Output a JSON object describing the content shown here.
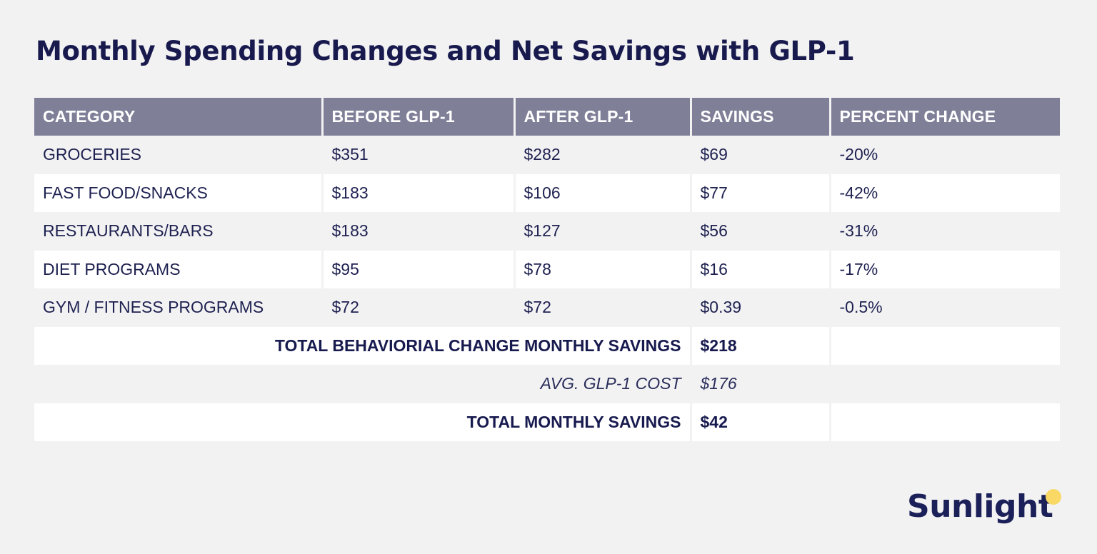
{
  "title": "Monthly Spending Changes and Net Savings with GLP-1",
  "colors": {
    "header_bg": "#7f8098",
    "header_text": "#ffffff",
    "text": "#1e2150",
    "page_bg": "#f2f2f3",
    "row_alt_bg": "#ffffff",
    "logo_dot": "#f9d866"
  },
  "chart_data": {
    "type": "table",
    "title": "Monthly Spending Changes and Net Savings with GLP-1",
    "columns": [
      "CATEGORY",
      "BEFORE GLP-1",
      "AFTER GLP-1",
      "SAVINGS",
      "PERCENT CHANGE"
    ],
    "rows": [
      [
        "GROCERIES",
        "$351",
        "$282",
        "$69",
        "-20%"
      ],
      [
        "FAST FOOD/SNACKS",
        "$183",
        "$106",
        "$77",
        "-42%"
      ],
      [
        "RESTAURANTS/BARS",
        "$183",
        "$127",
        "$56",
        "-31%"
      ],
      [
        "DIET PROGRAMS",
        "$95",
        "$78",
        "$16",
        "-17%"
      ],
      [
        "GYM / FITNESS PROGRAMS",
        "$72",
        "$72",
        "$0.39",
        "-0.5%"
      ]
    ],
    "summary": [
      {
        "label": "TOTAL BEHAVIORIAL CHANGE MONTHLY SAVINGS",
        "value": "$218"
      },
      {
        "label": "AVG. GLP-1 COST",
        "value": "$176"
      },
      {
        "label": "TOTAL MONTHLY SAVINGS",
        "value": "$42"
      }
    ]
  },
  "logo": {
    "text": "Sunlight"
  }
}
